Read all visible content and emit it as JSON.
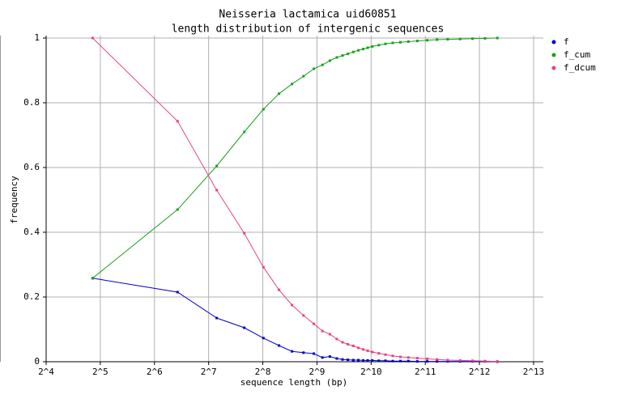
{
  "chart_data": {
    "type": "line",
    "title": "Neisseria lactamica uid60851",
    "subtitle": "length distribution of intergenic sequences",
    "x_label": "sequence length (bp)",
    "y_label": "frequency",
    "log_x_base": 2,
    "grid": true,
    "legend": "right",
    "xlim": [
      16,
      8192
    ],
    "xticks": [
      {
        "value": 16,
        "label": "2^4"
      },
      {
        "value": 32,
        "label": "2^5"
      },
      {
        "value": 64,
        "label": "2^6"
      },
      {
        "value": 128,
        "label": "2^7"
      },
      {
        "value": 256,
        "label": "2^8"
      },
      {
        "value": 512,
        "label": "2^9"
      },
      {
        "value": 1024,
        "label": "2^10"
      },
      {
        "value": 2048,
        "label": "2^11"
      },
      {
        "value": 4096,
        "label": "2^12"
      },
      {
        "value": 8192,
        "label": "2^13"
      }
    ],
    "ylim": [
      0,
      1
    ],
    "yticks": [
      0,
      0.2,
      0.4,
      0.6,
      0.8,
      1
    ],
    "x": [
      29,
      86,
      142,
      202,
      258,
      315,
      372,
      431,
      492,
      549,
      604,
      660,
      710,
      760,
      815,
      870,
      925,
      980,
      1040,
      1130,
      1230,
      1350,
      1490,
      1650,
      1850,
      2100,
      2380,
      2730,
      3200,
      3750,
      4400,
      5150
    ],
    "series": [
      {
        "name": "f",
        "color": "#0000cc",
        "values": [
          0.258,
          0.215,
          0.135,
          0.105,
          0.073,
          0.05,
          0.032,
          0.028,
          0.025,
          0.013,
          0.016,
          0.01,
          0.007,
          0.006,
          0.005,
          0.005,
          0.004,
          0.004,
          0.004,
          0.003,
          0.003,
          0.002,
          0.002,
          0.002,
          0.001,
          0.001,
          0.001,
          0.001,
          0.001,
          0.001,
          0.001,
          0
        ]
      },
      {
        "name": "f_cum",
        "color": "#1aa01a",
        "values": [
          0.258,
          0.47,
          0.605,
          0.71,
          0.78,
          0.828,
          0.858,
          0.882,
          0.905,
          0.917,
          0.93,
          0.94,
          0.946,
          0.951,
          0.957,
          0.962,
          0.966,
          0.97,
          0.974,
          0.978,
          0.982,
          0.985,
          0.987,
          0.989,
          0.991,
          0.993,
          0.995,
          0.996,
          0.997,
          0.998,
          0.999,
          1
        ]
      },
      {
        "name": "f_dcum",
        "color": "#e8437f",
        "values": [
          1,
          0.743,
          0.53,
          0.397,
          0.292,
          0.222,
          0.175,
          0.143,
          0.117,
          0.095,
          0.085,
          0.07,
          0.06,
          0.054,
          0.049,
          0.043,
          0.038,
          0.034,
          0.03,
          0.026,
          0.022,
          0.018,
          0.015,
          0.013,
          0.011,
          0.009,
          0.007,
          0.005,
          0.004,
          0.003,
          0.002,
          0.001
        ]
      }
    ]
  }
}
